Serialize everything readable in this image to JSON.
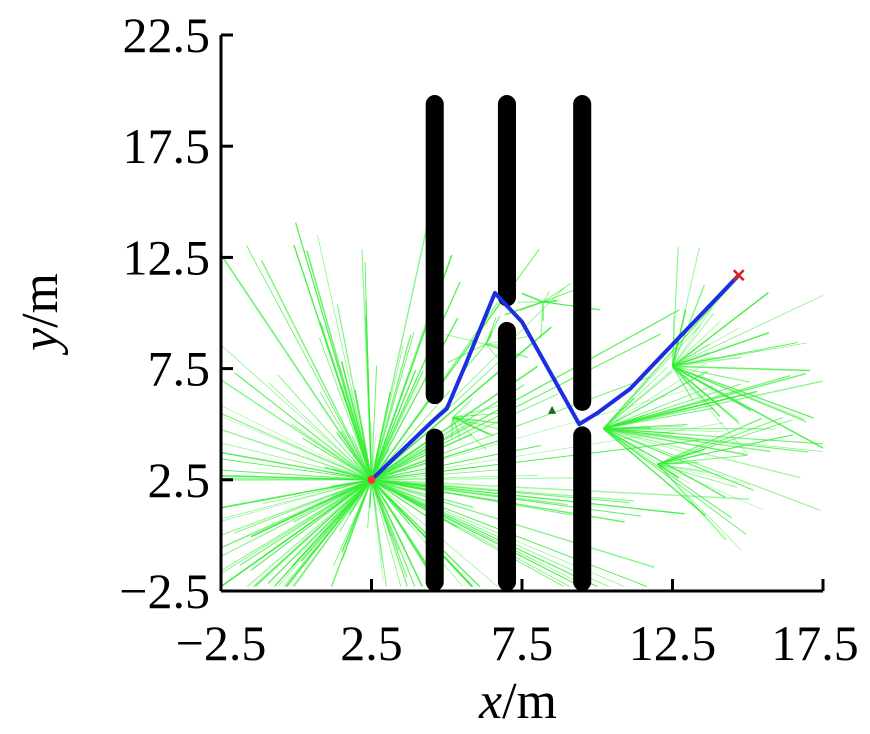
{
  "chart_data": {
    "type": "line",
    "xlabel": {
      "var": "x",
      "unit": "/m"
    },
    "ylabel": {
      "var": "y",
      "unit": "/m"
    },
    "xlim": [
      -2.5,
      17.5
    ],
    "ylim": [
      -2.5,
      22.5
    ],
    "x_ticks": [
      -2.5,
      2.5,
      7.5,
      12.5,
      17.5
    ],
    "y_ticks": [
      -2.5,
      2.5,
      7.5,
      12.5,
      17.5,
      22.5
    ],
    "x_tick_labels": [
      "−2.5",
      "2.5",
      "7.5",
      "12.5",
      "17.5"
    ],
    "y_tick_labels": [
      "−2.5",
      "2.5",
      "7.5",
      "12.5",
      "17.5",
      "22.5"
    ],
    "grid": false,
    "colors": {
      "path": "#1a2fe0",
      "tree": "#33ee33",
      "obstacle": "#000000",
      "start": "#ff3333",
      "goal": "#dd2222"
    },
    "obstacles": [
      {
        "x": 4.6,
        "y_bottom": -2.5,
        "y_top": 4.8,
        "width": 0.6
      },
      {
        "x": 4.6,
        "y_bottom": 5.9,
        "y_top": 19.8,
        "width": 0.6
      },
      {
        "x": 7.0,
        "y_bottom": -2.5,
        "y_top": 9.6,
        "width": 0.6
      },
      {
        "x": 7.0,
        "y_bottom": 10.3,
        "y_top": 19.8,
        "width": 0.6
      },
      {
        "x": 9.5,
        "y_bottom": -2.5,
        "y_top": 4.9,
        "width": 0.6
      },
      {
        "x": 9.5,
        "y_bottom": 5.6,
        "y_top": 19.8,
        "width": 0.6
      }
    ],
    "path": {
      "x": [
        2.5,
        4.5,
        5.0,
        5.6,
        6.6,
        7.5,
        9.4,
        10.0,
        11.1,
        12.3,
        14.7
      ],
      "y": [
        2.5,
        5.1,
        5.7,
        7.6,
        10.9,
        9.6,
        5.0,
        5.5,
        6.6,
        8.3,
        11.7
      ]
    },
    "start": {
      "x": 2.5,
      "y": 2.5
    },
    "goal": {
      "x": 14.7,
      "y": 11.7
    },
    "small_marker": {
      "x": 8.5,
      "y": 5.6
    },
    "tree_root": {
      "x": 2.5,
      "y": 2.5
    },
    "tree_clusters": [
      {
        "x": 2.5,
        "y": 2.5,
        "count": 190,
        "min_len": 1.0,
        "max_len": 13.0,
        "a0": 0,
        "a1": 360
      },
      {
        "x": 5.2,
        "y": 5.3,
        "count": 16,
        "min_len": 0.4,
        "max_len": 2.0,
        "a0": -100,
        "a1": 60
      },
      {
        "x": 6.3,
        "y": 8.6,
        "count": 12,
        "min_len": 0.4,
        "max_len": 1.8,
        "a0": 0,
        "a1": 360
      },
      {
        "x": 8.2,
        "y": 10.5,
        "count": 12,
        "min_len": 0.4,
        "max_len": 2.0,
        "a0": 0,
        "a1": 360
      },
      {
        "x": 10.2,
        "y": 4.8,
        "count": 40,
        "min_len": 1.0,
        "max_len": 8.5,
        "a0": -50,
        "a1": 60
      },
      {
        "x": 12.5,
        "y": 7.6,
        "count": 34,
        "min_len": 1.0,
        "max_len": 6.5,
        "a0": -80,
        "a1": 95
      },
      {
        "x": 12.0,
        "y": 3.2,
        "count": 20,
        "min_len": 0.8,
        "max_len": 5.0,
        "a0": -60,
        "a1": 40
      }
    ]
  }
}
